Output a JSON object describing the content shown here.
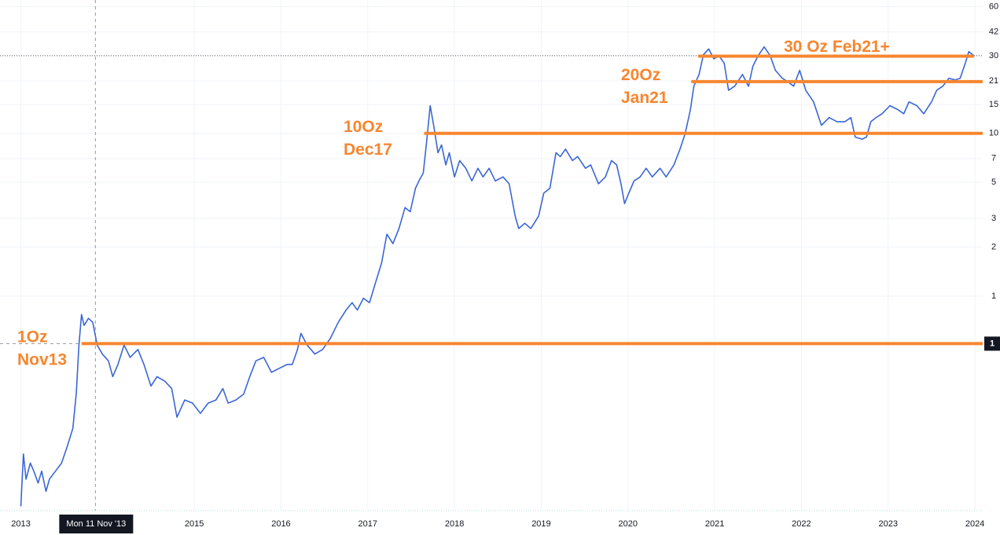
{
  "chart_data": {
    "type": "line",
    "log_scale": true,
    "grid": true,
    "xlim": [
      2012.76,
      2024.09
    ],
    "ylim": [
      0.048,
      66
    ],
    "xticks": [
      2013,
      2015,
      2016,
      2017,
      2018,
      2019,
      2020,
      2021,
      2022,
      2023,
      2024
    ],
    "yticks": [
      1,
      2,
      3,
      5,
      7,
      10,
      15,
      21,
      30,
      42,
      60
    ],
    "price_line": 30,
    "crosshair": {
      "x": {
        "value": 2013.86,
        "label": "Mon 11 Nov '13"
      },
      "y": {
        "value": 0.51,
        "label": "1"
      }
    },
    "series": [
      {
        "color": "#3a66d6",
        "x": [
          2013.0,
          2013.03,
          2013.06,
          2013.11,
          2013.15,
          2013.2,
          2013.24,
          2013.29,
          2013.33,
          2013.4,
          2013.47,
          2013.53,
          2013.6,
          2013.64,
          2013.67,
          2013.7,
          2013.73,
          2013.78,
          2013.83,
          2013.88,
          2013.94,
          2014.01,
          2014.06,
          2014.12,
          2014.19,
          2014.26,
          2014.35,
          2014.42,
          2014.5,
          2014.57,
          2014.66,
          2014.74,
          2014.8,
          2014.89,
          2014.98,
          2015.07,
          2015.16,
          2015.25,
          2015.33,
          2015.39,
          2015.48,
          2015.57,
          2015.64,
          2015.71,
          2015.8,
          2015.89,
          2015.98,
          2016.07,
          2016.13,
          2016.19,
          2016.23,
          2016.3,
          2016.39,
          2016.48,
          2016.57,
          2016.66,
          2016.75,
          2016.82,
          2016.88,
          2016.95,
          2017.02,
          2017.09,
          2017.16,
          2017.22,
          2017.29,
          2017.36,
          2017.43,
          2017.49,
          2017.55,
          2017.59,
          2017.64,
          2017.68,
          2017.72,
          2017.76,
          2017.81,
          2017.85,
          2017.9,
          2017.94,
          2018.0,
          2018.06,
          2018.13,
          2018.2,
          2018.27,
          2018.33,
          2018.4,
          2018.47,
          2018.56,
          2018.63,
          2018.7,
          2018.74,
          2018.81,
          2018.88,
          2018.97,
          2019.03,
          2019.1,
          2019.17,
          2019.22,
          2019.28,
          2019.36,
          2019.42,
          2019.51,
          2019.57,
          2019.66,
          2019.74,
          2019.81,
          2019.87,
          2019.92,
          2019.96,
          2020.01,
          2020.07,
          2020.14,
          2020.21,
          2020.28,
          2020.37,
          2020.44,
          2020.53,
          2020.6,
          2020.66,
          2020.72,
          2020.76,
          2020.82,
          2020.87,
          2020.93,
          2020.99,
          2021.05,
          2021.11,
          2021.16,
          2021.23,
          2021.32,
          2021.39,
          2021.44,
          2021.5,
          2021.57,
          2021.64,
          2021.7,
          2021.78,
          2021.85,
          2021.91,
          2021.98,
          2022.05,
          2022.14,
          2022.23,
          2022.32,
          2022.41,
          2022.5,
          2022.57,
          2022.62,
          2022.7,
          2022.75,
          2022.8,
          2022.86,
          2022.93,
          2023.02,
          2023.11,
          2023.18,
          2023.24,
          2023.33,
          2023.41,
          2023.5,
          2023.56,
          2023.63,
          2023.7,
          2023.77,
          2023.83,
          2023.89,
          2023.93,
          2023.99
        ],
        "values": [
          0.051,
          0.107,
          0.075,
          0.094,
          0.084,
          0.071,
          0.084,
          0.063,
          0.075,
          0.084,
          0.094,
          0.117,
          0.154,
          0.255,
          0.5,
          0.77,
          0.66,
          0.73,
          0.69,
          0.5,
          0.44,
          0.4,
          0.32,
          0.38,
          0.5,
          0.42,
          0.47,
          0.38,
          0.28,
          0.32,
          0.3,
          0.27,
          0.18,
          0.23,
          0.22,
          0.19,
          0.22,
          0.23,
          0.27,
          0.22,
          0.23,
          0.25,
          0.32,
          0.4,
          0.42,
          0.34,
          0.36,
          0.38,
          0.38,
          0.47,
          0.59,
          0.5,
          0.44,
          0.47,
          0.55,
          0.69,
          0.82,
          0.91,
          0.82,
          0.97,
          0.91,
          1.21,
          1.6,
          2.4,
          2.1,
          2.6,
          3.5,
          3.3,
          4.6,
          5.1,
          5.7,
          9.0,
          14.8,
          11.2,
          7.6,
          8.5,
          6.4,
          7.6,
          5.4,
          6.8,
          6.1,
          5.1,
          6.1,
          5.4,
          6.1,
          5.1,
          5.4,
          4.9,
          3.1,
          2.6,
          2.8,
          2.6,
          3.1,
          4.3,
          4.6,
          7.6,
          7.2,
          8.0,
          6.8,
          7.2,
          6.1,
          6.4,
          4.9,
          5.4,
          6.8,
          6.4,
          4.9,
          3.7,
          4.3,
          5.1,
          5.4,
          6.1,
          5.4,
          6.1,
          5.4,
          6.4,
          8.0,
          10,
          14.0,
          19.5,
          23,
          30.4,
          33,
          28.7,
          30,
          27,
          18.4,
          19.5,
          23,
          19.5,
          25.8,
          30,
          34,
          30,
          24.4,
          21.8,
          20.6,
          19.5,
          24.4,
          18.4,
          15.6,
          11.2,
          12.5,
          11.8,
          11.8,
          12.5,
          9.5,
          9.2,
          9.5,
          11.8,
          12.5,
          13.2,
          14.8,
          14.0,
          13.2,
          15.6,
          14.8,
          13.2,
          15.6,
          18.4,
          19.5,
          21.8,
          21.3,
          21.8,
          27,
          31.8,
          30
        ]
      }
    ],
    "annotations": [
      {
        "label_lines": [
          "1Oz",
          "Nov13"
        ],
        "value": 0.51,
        "x_range": [
          2013.7,
          2024.09
        ],
        "color": "#f7862f"
      },
      {
        "label_lines": [
          "10Oz",
          "Dec17"
        ],
        "value": 10,
        "x_range": [
          2017.65,
          2024.09
        ],
        "color": "#f7862f"
      },
      {
        "label_lines": [
          "20Oz",
          "Jan21"
        ],
        "value": 20.8,
        "x_range": [
          2020.73,
          2024.09
        ],
        "color": "#f7862f"
      },
      {
        "label_lines": [
          "30 Oz Feb21+"
        ],
        "value": 29.8,
        "x_range": [
          2020.81,
          2023.99
        ],
        "color": "#f7862f"
      }
    ]
  }
}
